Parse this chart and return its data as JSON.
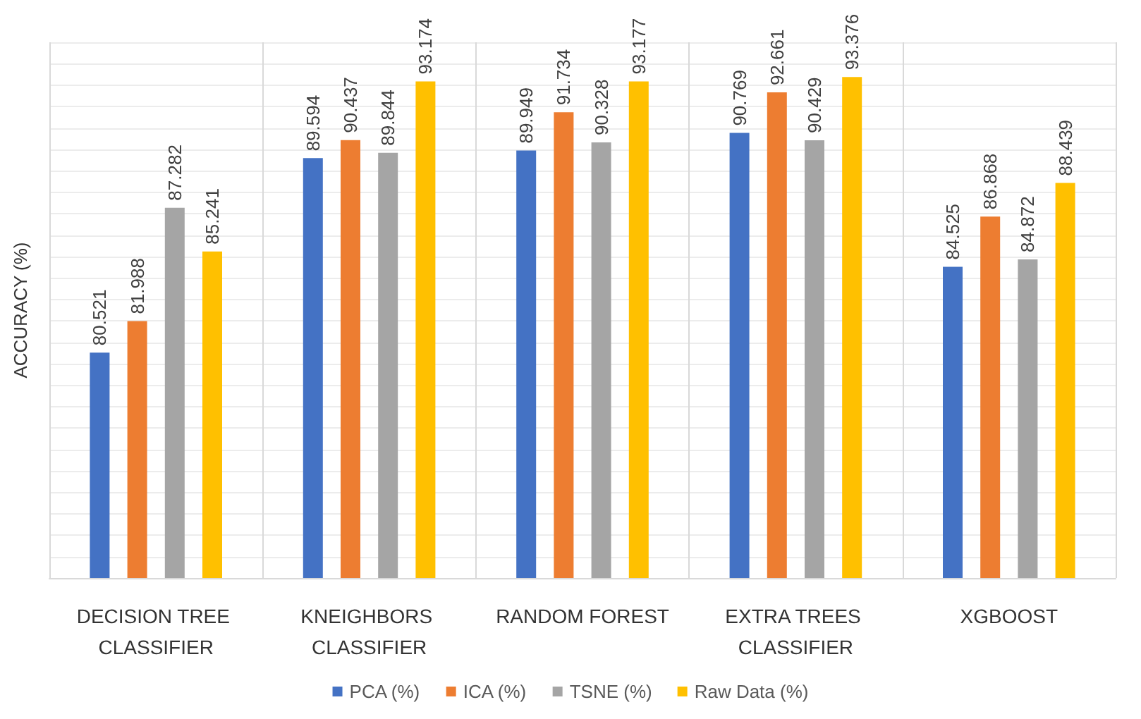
{
  "chart_data": {
    "type": "bar",
    "ylabel": "ACCURACY (%)",
    "categories": [
      "DECISION TREE CLASSIFIER",
      "KNEIGHBORS CLASSIFIER",
      "RANDOM FOREST",
      "EXTRA TREES CLASSIFIER",
      "XGBOOST"
    ],
    "series": [
      {
        "name": "PCA (%)",
        "color": "#4472c4",
        "values": [
          80.521,
          89.594,
          89.949,
          90.769,
          84.525
        ]
      },
      {
        "name": "ICA (%)",
        "color": "#ed7d31",
        "values": [
          81.988,
          90.437,
          91.734,
          92.661,
          86.868
        ]
      },
      {
        "name": "TSNE (%)",
        "color": "#a5a5a5",
        "values": [
          87.282,
          89.844,
          90.328,
          90.429,
          84.872
        ]
      },
      {
        "name": "Raw Data (%)",
        "color": "#ffc000",
        "values": [
          85.241,
          93.174,
          93.177,
          93.376,
          88.439
        ]
      }
    ],
    "ylim": [
      70,
      95
    ],
    "yticks": [
      {
        "value": 70,
        "label": null
      },
      {
        "value": 71,
        "label": null
      },
      {
        "value": 72,
        "label": null
      },
      {
        "value": 73,
        "label": null
      },
      {
        "value": 74,
        "label": null
      },
      {
        "value": 75,
        "label": null
      },
      {
        "value": 76,
        "label": null
      },
      {
        "value": 77,
        "label": null
      },
      {
        "value": 78,
        "label": null
      },
      {
        "value": 79,
        "label": null
      },
      {
        "value": 80,
        "label": null
      },
      {
        "value": 81,
        "label": null
      },
      {
        "value": 82,
        "label": null
      },
      {
        "value": 83,
        "label": null
      },
      {
        "value": 84,
        "label": null
      },
      {
        "value": 85,
        "label": null
      },
      {
        "value": 86,
        "label": null
      },
      {
        "value": 87,
        "label": null
      },
      {
        "value": 88,
        "label": null
      },
      {
        "value": 89,
        "label": null
      },
      {
        "value": 90,
        "label": null
      },
      {
        "value": 91,
        "label": null
      },
      {
        "value": 92,
        "label": null
      },
      {
        "value": 93,
        "label": null
      },
      {
        "value": 94,
        "label": null
      },
      {
        "value": 95,
        "label": null
      }
    ],
    "tick_labels": "x",
    "grid": true,
    "legend": "bottom",
    "data_labels": true
  }
}
